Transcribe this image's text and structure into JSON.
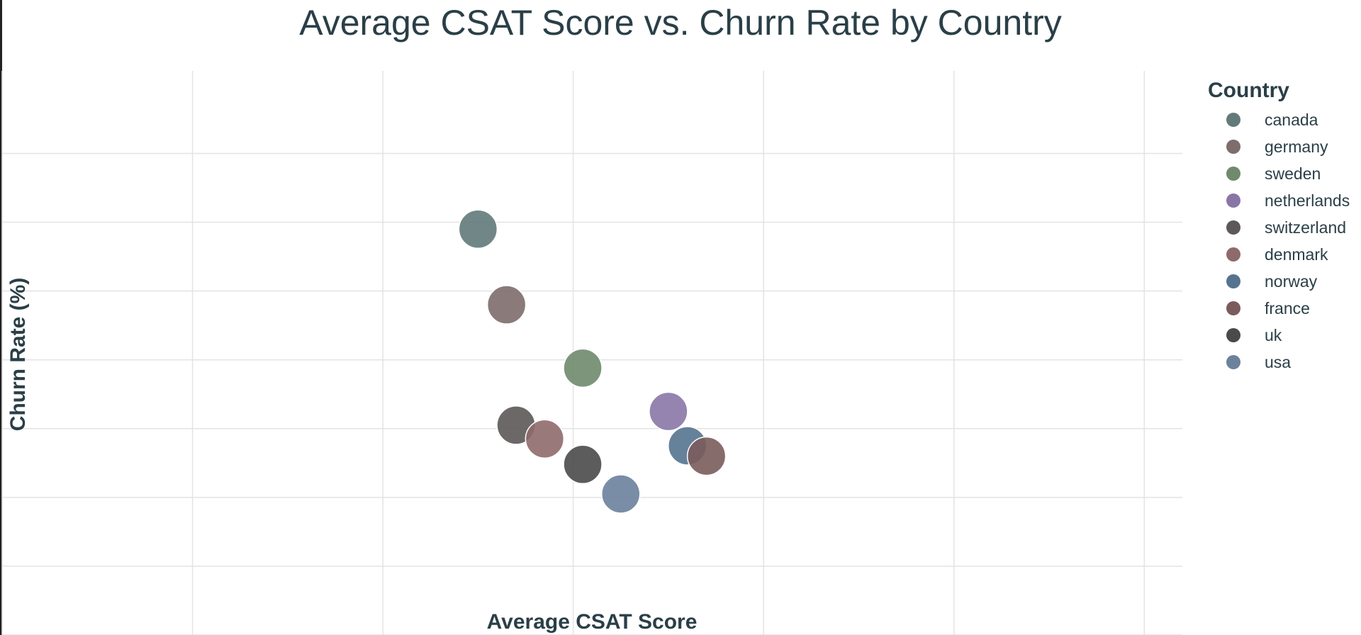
{
  "chart_data": {
    "type": "scatter",
    "title": "Average CSAT Score vs. Churn Rate by Country",
    "xlabel": "Average CSAT Score",
    "ylabel": "Churn Rate (%)",
    "xlim": [
      0,
      6.2
    ],
    "ylim": [
      0,
      8.2
    ],
    "grid": true,
    "legend_title": "Country",
    "legend_position": "right",
    "series": [
      {
        "name": "canada",
        "x": 2.5,
        "y": 5.9,
        "color": "#627a7a"
      },
      {
        "name": "germany",
        "x": 2.65,
        "y": 4.8,
        "color": "#7d6d6c"
      },
      {
        "name": "sweden",
        "x": 3.05,
        "y": 3.88,
        "color": "#6f8a6d"
      },
      {
        "name": "netherlands",
        "x": 3.5,
        "y": 3.25,
        "color": "#8877a6"
      },
      {
        "name": "switzerland",
        "x": 2.7,
        "y": 3.05,
        "color": "#5c5858"
      },
      {
        "name": "denmark",
        "x": 2.85,
        "y": 2.85,
        "color": "#8f6a6b"
      },
      {
        "name": "norway",
        "x": 3.6,
        "y": 2.75,
        "color": "#55738f"
      },
      {
        "name": "france",
        "x": 3.7,
        "y": 2.6,
        "color": "#7a5c5c"
      },
      {
        "name": "uk",
        "x": 3.05,
        "y": 2.48,
        "color": "#4a4a4a"
      },
      {
        "name": "usa",
        "x": 3.25,
        "y": 2.05,
        "color": "#6c819c"
      }
    ]
  }
}
